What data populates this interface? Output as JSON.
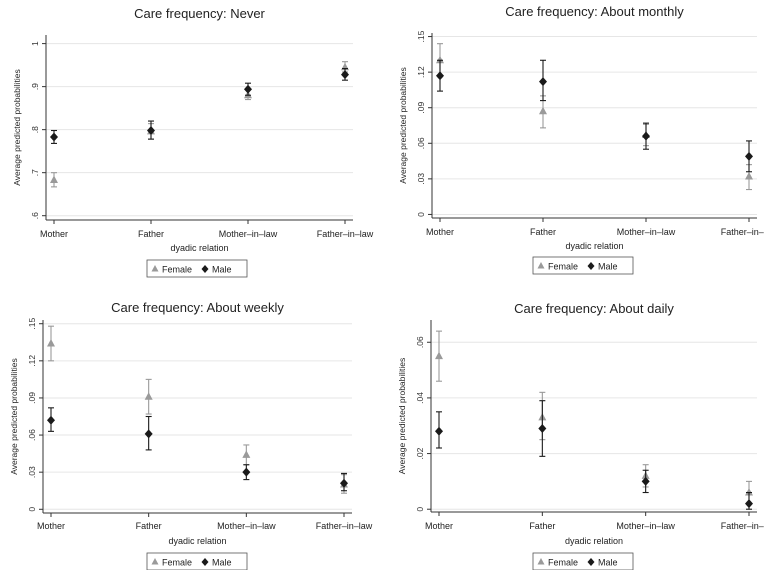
{
  "chart_data": [
    {
      "type": "scatter",
      "title": "Care frequency: Never",
      "xlabel": "dyadic relation",
      "ylabel": "Average predicted probabilities",
      "categories": [
        "Mother",
        "Father",
        "Mother–in–law",
        "Father–in–law"
      ],
      "yticks": [
        ".6",
        ".7",
        ".8",
        ".9",
        "1"
      ],
      "ytick_values": [
        0.6,
        0.7,
        0.8,
        0.9,
        1.0
      ],
      "ylim": [
        0.59,
        1.02
      ],
      "grid": true,
      "legend": "bottom",
      "series": [
        {
          "name": "Female",
          "marker": "triangle",
          "color": "#9a9a9a",
          "values": [
            0.683,
            0.796,
            0.88,
            0.945
          ],
          "lower": [
            0.667,
            0.778,
            0.87,
            0.934
          ],
          "upper": [
            0.7,
            0.814,
            0.892,
            0.958
          ]
        },
        {
          "name": "Male",
          "marker": "diamond",
          "color": "#1a1a1a",
          "values": [
            0.783,
            0.798,
            0.894,
            0.928
          ],
          "lower": [
            0.768,
            0.778,
            0.88,
            0.915
          ],
          "upper": [
            0.798,
            0.82,
            0.908,
            0.942
          ]
        }
      ]
    },
    {
      "type": "scatter",
      "title": "Care frequency: About monthly",
      "xlabel": "dyadic relation",
      "ylabel": "Average predicted probabilities",
      "categories": [
        "Mother",
        "Father",
        "Mother–in–law",
        "Father–in–law"
      ],
      "yticks": [
        "0",
        ".03",
        ".06",
        ".09",
        ".12",
        ".15"
      ],
      "ytick_values": [
        0,
        0.03,
        0.06,
        0.09,
        0.12,
        0.15
      ],
      "ylim": [
        -0.003,
        0.153
      ],
      "grid": true,
      "legend": "bottom",
      "series": [
        {
          "name": "Female",
          "marker": "triangle",
          "color": "#9a9a9a",
          "values": [
            0.13,
            0.087,
            0.067,
            0.032
          ],
          "lower": [
            0.116,
            0.073,
            0.058,
            0.021
          ],
          "upper": [
            0.144,
            0.1,
            0.076,
            0.042
          ]
        },
        {
          "name": "Male",
          "marker": "diamond",
          "color": "#1a1a1a",
          "values": [
            0.117,
            0.112,
            0.066,
            0.049
          ],
          "lower": [
            0.104,
            0.096,
            0.055,
            0.036
          ],
          "upper": [
            0.13,
            0.13,
            0.077,
            0.062
          ]
        }
      ]
    },
    {
      "type": "scatter",
      "title": "Care frequency: About weekly",
      "xlabel": "dyadic relation",
      "ylabel": "Average predicted probabilities",
      "categories": [
        "Mother",
        "Father",
        "Mother–in–law",
        "Father–in–law"
      ],
      "yticks": [
        "0",
        ".03",
        ".06",
        ".09",
        ".12",
        ".15"
      ],
      "ytick_values": [
        0,
        0.03,
        0.06,
        0.09,
        0.12,
        0.15
      ],
      "ylim": [
        -0.003,
        0.153
      ],
      "grid": true,
      "legend": "bottom",
      "series": [
        {
          "name": "Female",
          "marker": "triangle",
          "color": "#9a9a9a",
          "values": [
            0.134,
            0.091,
            0.044,
            0.02
          ],
          "lower": [
            0.12,
            0.077,
            0.036,
            0.013
          ],
          "upper": [
            0.148,
            0.105,
            0.052,
            0.028
          ]
        },
        {
          "name": "Male",
          "marker": "diamond",
          "color": "#1a1a1a",
          "values": [
            0.072,
            0.061,
            0.03,
            0.021
          ],
          "lower": [
            0.063,
            0.048,
            0.024,
            0.015
          ],
          "upper": [
            0.082,
            0.075,
            0.036,
            0.029
          ]
        }
      ]
    },
    {
      "type": "scatter",
      "title": "Care frequency: About daily",
      "xlabel": "dyadic relation",
      "ylabel": "Average predicted probabilities",
      "categories": [
        "Mother",
        "Father",
        "Mother–in–law",
        "Father–in–law"
      ],
      "yticks": [
        "0",
        ".02",
        ".04",
        ".06"
      ],
      "ytick_values": [
        0,
        0.02,
        0.04,
        0.06
      ],
      "ylim": [
        -0.001,
        0.068
      ],
      "grid": true,
      "legend": "bottom",
      "series": [
        {
          "name": "Female",
          "marker": "triangle",
          "color": "#9a9a9a",
          "values": [
            0.055,
            0.033,
            0.012,
            0.006
          ],
          "lower": [
            0.046,
            0.025,
            0.008,
            0.002
          ],
          "upper": [
            0.064,
            0.042,
            0.016,
            0.01
          ]
        },
        {
          "name": "Male",
          "marker": "diamond",
          "color": "#1a1a1a",
          "values": [
            0.028,
            0.029,
            0.01,
            0.002
          ],
          "lower": [
            0.022,
            0.019,
            0.006,
            0.0
          ],
          "upper": [
            0.035,
            0.039,
            0.014,
            0.006
          ]
        }
      ]
    }
  ]
}
